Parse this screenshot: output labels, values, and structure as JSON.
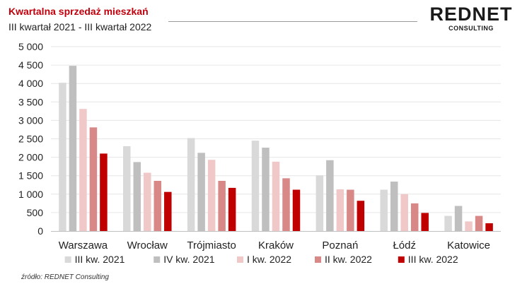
{
  "header": {
    "title": "Kwartalna sprzedaż mieszkań",
    "subtitle": "III kwartał 2021 - III kwartał 2022"
  },
  "logo": {
    "main": "REDNET",
    "sub": "CONSULTING"
  },
  "source": "źródło: REDNET Consulting",
  "chart_data": {
    "type": "bar",
    "title": "Kwartalna sprzedaż mieszkań",
    "subtitle": "III kwartał 2021 - III kwartał 2022",
    "categories": [
      "Warszawa",
      "Wrocław",
      "Trójmiasto",
      "Kraków",
      "Poznań",
      "Łódź",
      "Katowice"
    ],
    "series": [
      {
        "name": "III kw. 2021",
        "color": "#d9d9d9",
        "values": [
          4020,
          2300,
          2520,
          2450,
          1510,
          1120,
          410
        ]
      },
      {
        "name": "IV kw. 2021",
        "color": "#bfbfbf",
        "values": [
          4480,
          1870,
          2120,
          2260,
          1920,
          1340,
          680
        ]
      },
      {
        "name": "I kw. 2022",
        "color": "#f0c8c8",
        "values": [
          3310,
          1580,
          1930,
          1880,
          1130,
          1000,
          260
        ]
      },
      {
        "name": "II kw. 2022",
        "color": "#d98888",
        "values": [
          2810,
          1360,
          1360,
          1430,
          1120,
          750,
          410
        ]
      },
      {
        "name": "III kw. 2022",
        "color": "#c00000",
        "values": [
          2100,
          1060,
          1170,
          1120,
          820,
          490,
          210
        ]
      }
    ],
    "y_ticks": [
      "0",
      "500",
      "1 000",
      "1 500",
      "2 000",
      "2 500",
      "3 000",
      "3 500",
      "4 000",
      "4 500",
      "5 000"
    ],
    "ylim": [
      0,
      5000
    ],
    "grid": true,
    "legend_position": "bottom"
  }
}
